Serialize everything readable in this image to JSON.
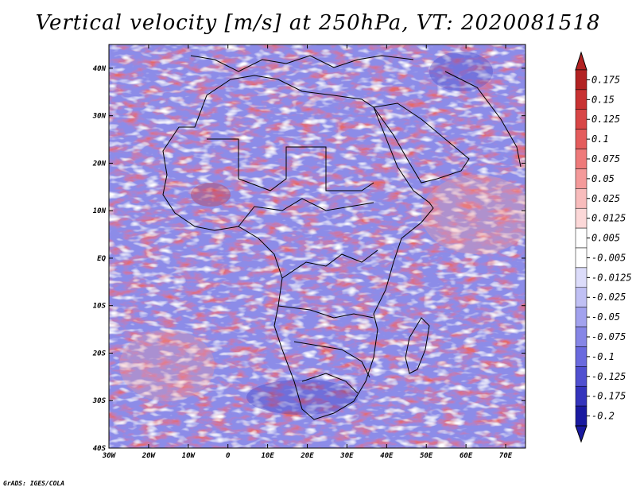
{
  "title": "Vertical velocity [m/s] at 250hPa, VT: 2020081518",
  "credit": "GrADS: IGES/COLA",
  "map": {
    "variable": "Vertical velocity",
    "units": "m/s",
    "level": "250hPa",
    "valid_time": "2020081518",
    "lon_range": [
      -30,
      75
    ],
    "lat_range": [
      -40,
      45
    ],
    "lon_ticks": [
      {
        "value": -30,
        "label": "30W"
      },
      {
        "value": -20,
        "label": "20W"
      },
      {
        "value": -10,
        "label": "10W"
      },
      {
        "value": 0,
        "label": "0"
      },
      {
        "value": 10,
        "label": "10E"
      },
      {
        "value": 20,
        "label": "20E"
      },
      {
        "value": 30,
        "label": "30E"
      },
      {
        "value": 40,
        "label": "40E"
      },
      {
        "value": 50,
        "label": "50E"
      },
      {
        "value": 60,
        "label": "60E"
      },
      {
        "value": 70,
        "label": "70E"
      }
    ],
    "lat_ticks": [
      {
        "value": 40,
        "label": "40N"
      },
      {
        "value": 30,
        "label": "30N"
      },
      {
        "value": 20,
        "label": "20N"
      },
      {
        "value": 10,
        "label": "10N"
      },
      {
        "value": 0,
        "label": "EQ"
      },
      {
        "value": -10,
        "label": "10S"
      },
      {
        "value": -20,
        "label": "20S"
      },
      {
        "value": -30,
        "label": "30S"
      },
      {
        "value": -40,
        "label": "40S"
      }
    ]
  },
  "colorbar": {
    "top_color": "#b22222",
    "bottom_color": "#1a1aa0",
    "levels": [
      {
        "label": "0.175",
        "color": "#b22222"
      },
      {
        "label": "0.15",
        "color": "#c83232"
      },
      {
        "label": "0.125",
        "color": "#d84646"
      },
      {
        "label": "0.1",
        "color": "#e45c5c"
      },
      {
        "label": "0.075",
        "color": "#ee7a7a"
      },
      {
        "label": "0.05",
        "color": "#f49a9a"
      },
      {
        "label": "0.025",
        "color": "#f8bcbc"
      },
      {
        "label": "0.0125",
        "color": "#fcd8d8"
      },
      {
        "label": "0.005",
        "color": "#ffffff"
      },
      {
        "label": "-0.005",
        "color": "#ffffff"
      },
      {
        "label": "-0.0125",
        "color": "#dcdcfa"
      },
      {
        "label": "-0.025",
        "color": "#c0c0f4"
      },
      {
        "label": "-0.05",
        "color": "#a2a2ee"
      },
      {
        "label": "-0.075",
        "color": "#8686e6"
      },
      {
        "label": "-0.1",
        "color": "#6a6ade"
      },
      {
        "label": "-0.125",
        "color": "#5050d0"
      },
      {
        "label": "-0.175",
        "color": "#3434bc"
      },
      {
        "label": "-0.2",
        "color": "#1a1aa0"
      }
    ]
  }
}
